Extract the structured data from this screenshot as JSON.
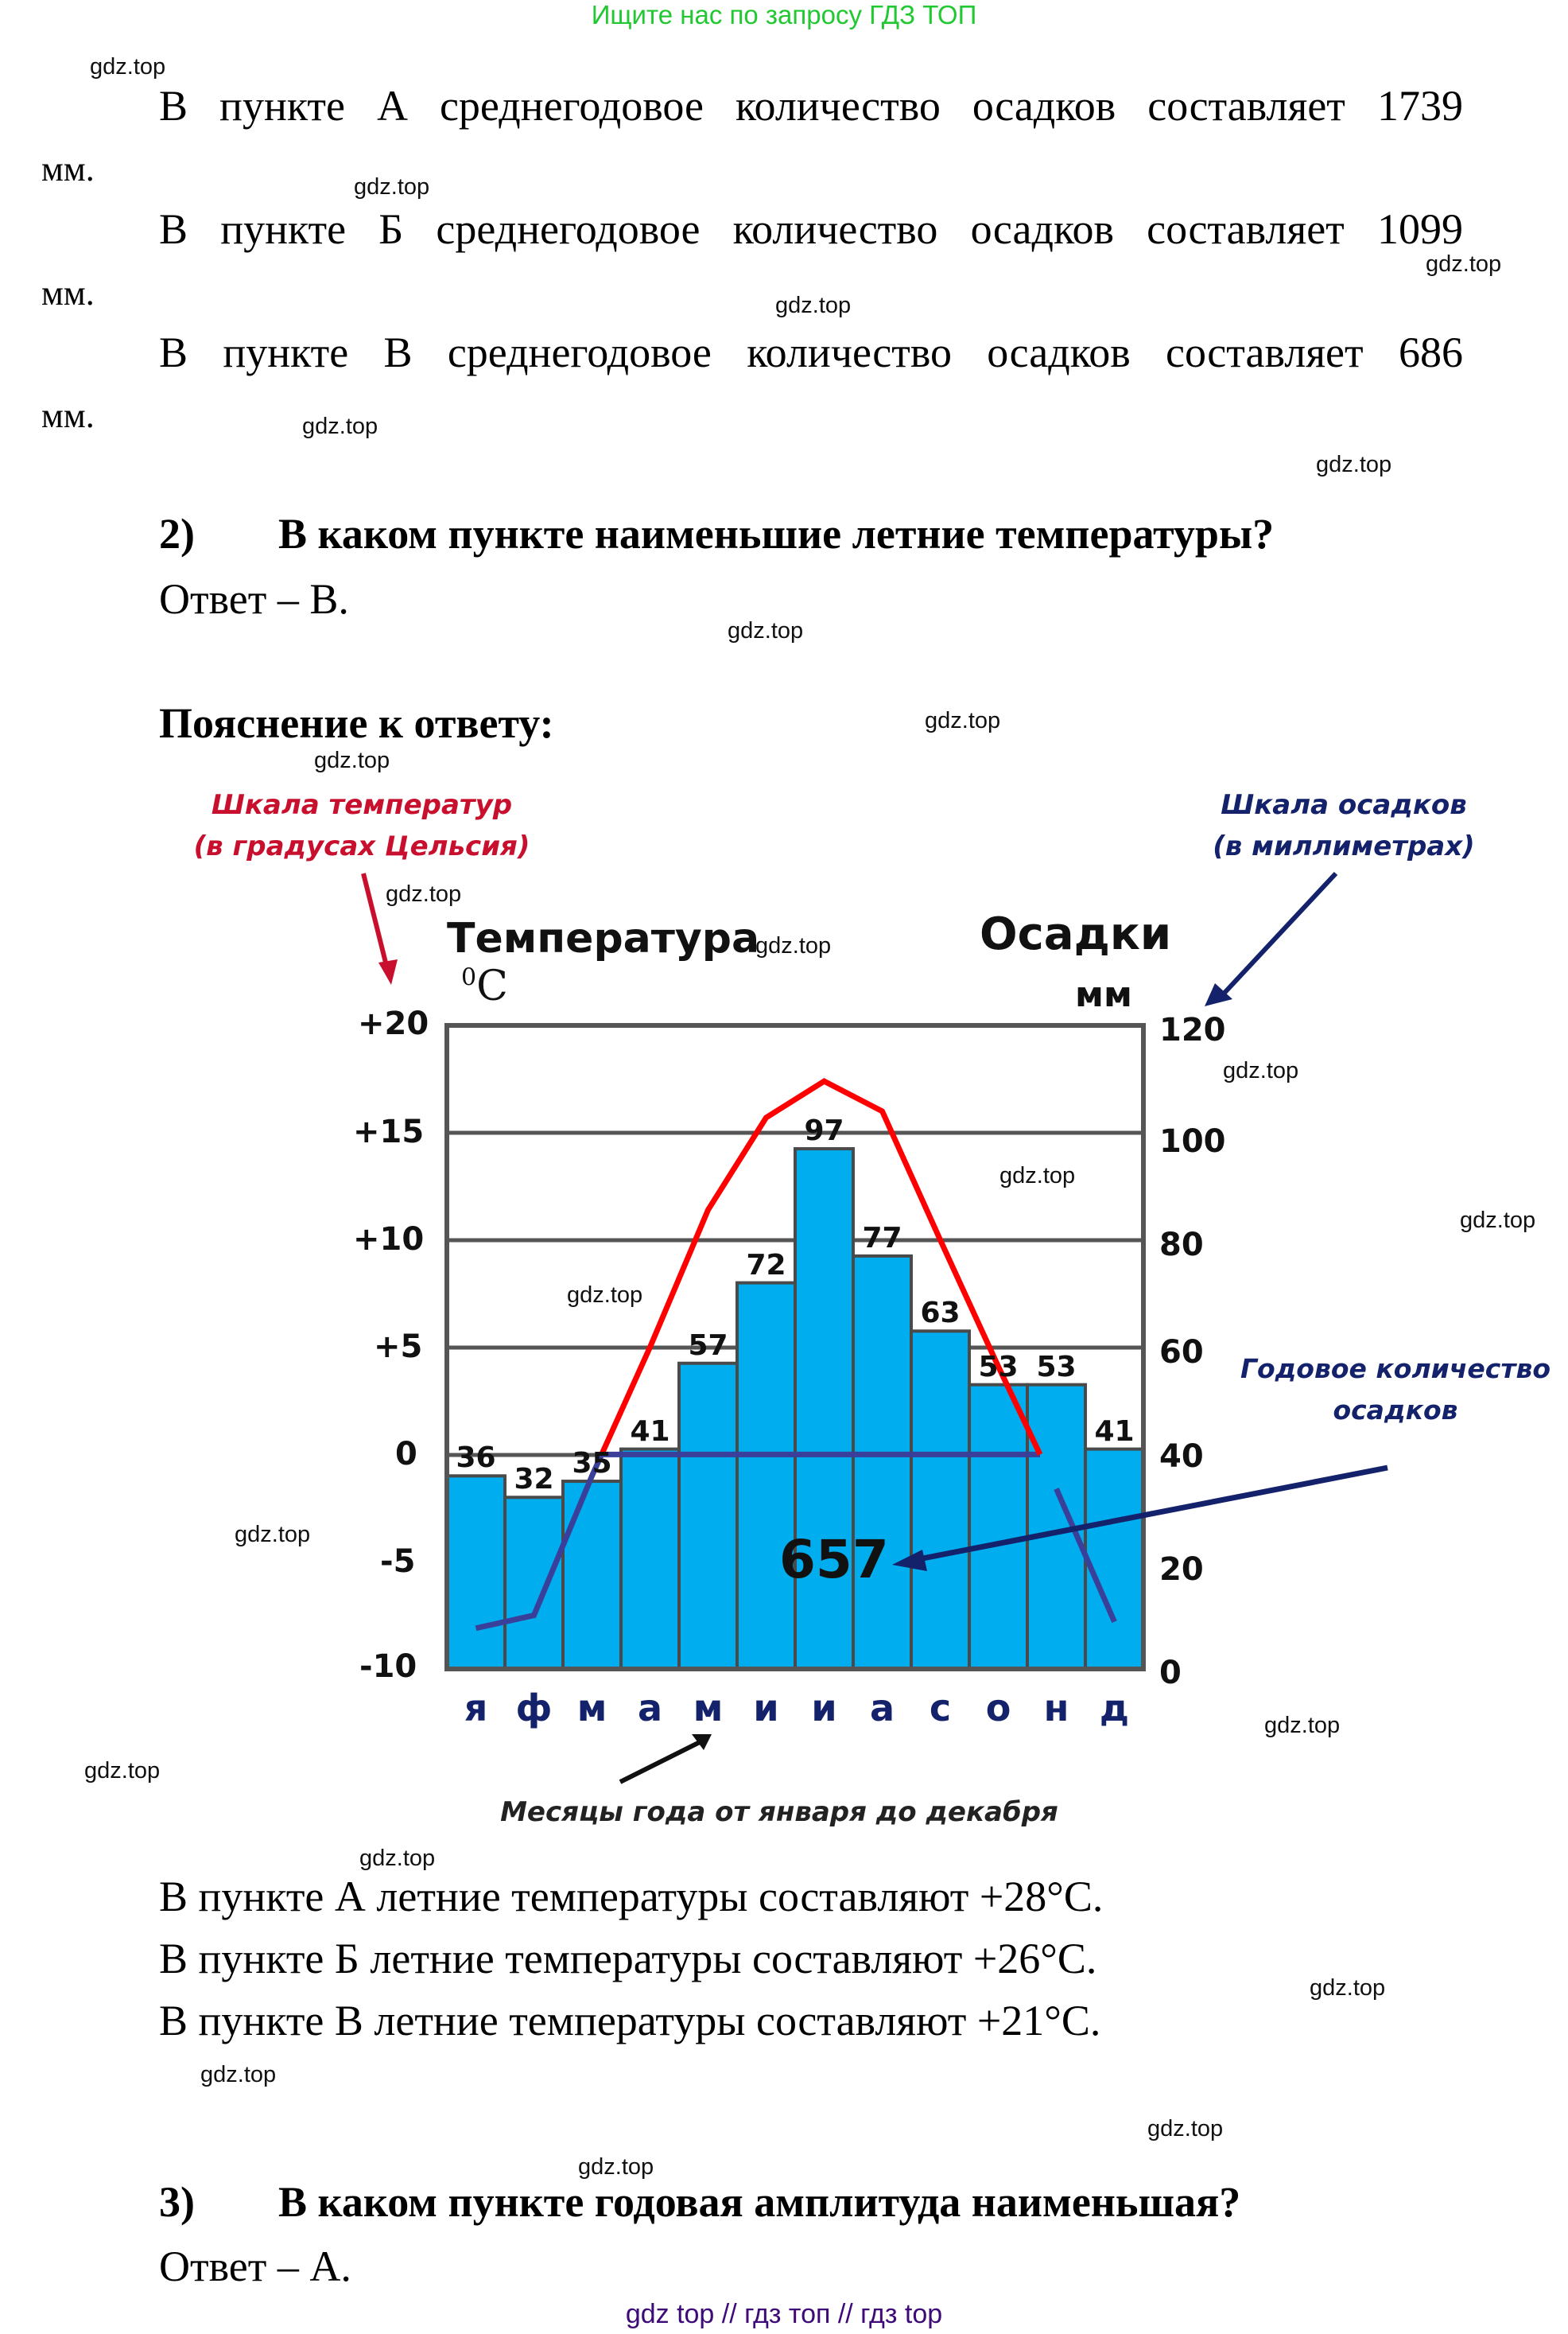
{
  "header": {
    "promo": "Ищите нас по запросу ГДЗ ТОП"
  },
  "watermark": "gdz.top",
  "precip_lines": [
    {
      "text_words": [
        "В",
        "пункте",
        "А",
        "среднегодовое",
        "количество",
        "осадков",
        "составляет",
        "1739"
      ],
      "unit": "мм."
    },
    {
      "text_words": [
        "В",
        "пункте",
        "Б",
        "среднегодовое",
        "количество",
        "осадков",
        "составляет",
        "1099"
      ],
      "unit": "мм."
    },
    {
      "text_words": [
        "В",
        "пункте",
        "В",
        "среднегодовое",
        "количество",
        "осадков",
        "составляет",
        "686"
      ],
      "unit": "мм."
    }
  ],
  "question2": {
    "number": "2)",
    "text": "В каком пункте наименьшие летние температуры?",
    "answer": "Ответ – В."
  },
  "explanation_title": "Пояснение к ответу:",
  "annotations": {
    "temp_scale_line1": "Шкала температур",
    "temp_scale_line2": "(в градусах Цельсия)",
    "precip_scale_line1": "Шкала осадков",
    "precip_scale_line2": "(в миллиметрах)",
    "annual_line1": "Годовое количество",
    "annual_line2": "осадков",
    "months_caption": "Месяцы года от января до декабря",
    "temp_title": "Температура",
    "temp_unit_sup": "0",
    "temp_unit": "C",
    "precip_title": "Осадки",
    "precip_unit": "мм",
    "annual_total": "657"
  },
  "chart_data": {
    "type": "bar+line",
    "title": "Климатограмма",
    "categories": [
      "я",
      "ф",
      "м",
      "а",
      "м",
      "и",
      "и",
      "а",
      "с",
      "о",
      "н",
      "д"
    ],
    "xlabel": "Месяцы года от января до декабря",
    "series": [
      {
        "name": "Осадки, мм",
        "type": "bar",
        "axis": "right",
        "color": "#00adef",
        "values": [
          36,
          32,
          35,
          41,
          57,
          72,
          97,
          77,
          63,
          53,
          53,
          41
        ]
      },
      {
        "name": "Температура, °C",
        "type": "line",
        "axis": "left",
        "color_above_zero": "#ff0000",
        "color_below_zero": "#3a3f9a",
        "values": [
          -8.1,
          -7.5,
          -1.0,
          5.0,
          11.4,
          15.7,
          17.4,
          16.0,
          10.0,
          4.1,
          -1.6,
          -7.8
        ]
      }
    ],
    "left_axis": {
      "label": "Температура °C",
      "ticks": [
        "+20",
        "+15",
        "+10",
        "+5",
        "0",
        "-5",
        "-10"
      ],
      "range": [
        -10,
        20
      ]
    },
    "right_axis": {
      "label": "Осадки мм",
      "ticks": [
        "120",
        "100",
        "80",
        "60",
        "40",
        "20",
        "0"
      ],
      "range": [
        0,
        120
      ]
    },
    "annual_precipitation": 657,
    "grid": true
  },
  "summer_lines": [
    "В пункте А летние температуры составляют +28°С.",
    "В пункте Б летние температуры составляют +26°С.",
    "В пункте В летние температуры составляют +21°С."
  ],
  "question3": {
    "number": "3)",
    "text": "В каком пункте годовая амплитуда наименьшая?",
    "answer": "Ответ – А."
  },
  "footer": {
    "text": "gdz top  //  гдз топ  //  гдз top"
  },
  "colors": {
    "promo": "#22c832",
    "footer": "#3d0a78",
    "bar": "#00adef",
    "temp_line": "#ff0000",
    "cold_line": "#3a3f9a",
    "annotation_red": "#c8102e",
    "annotation_blue": "#13226b"
  }
}
